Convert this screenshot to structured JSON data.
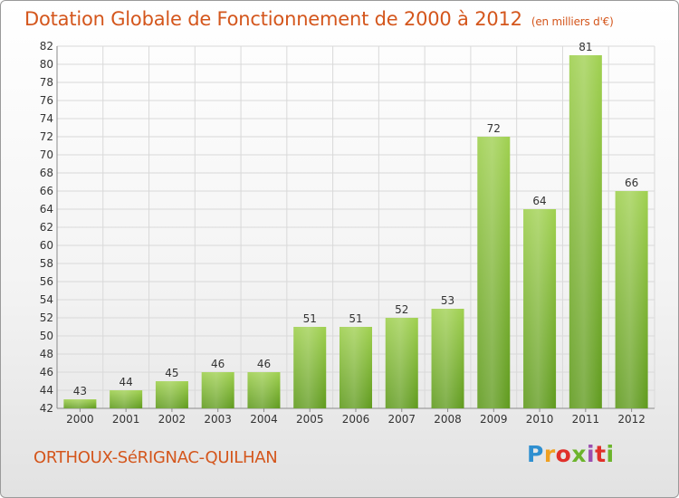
{
  "header": {
    "title": "Dotation Globale de Fonctionnement de 2000 à 2012",
    "subtitle": "(en milliers d'€)"
  },
  "footer": {
    "city": "ORTHOUX-SéRIGNAC-QUILHAN",
    "logo_text": "Proxiti"
  },
  "colors": {
    "title": "#d4561c",
    "bar_light": "#9fd04f",
    "bar_dark": "#5f9a1d",
    "grid": "#d9d9d9"
  },
  "chart_data": {
    "type": "bar",
    "title": "Dotation Globale de Fonctionnement de 2000 à 2012",
    "subtitle": "(en milliers d'€)",
    "categories": [
      "2000",
      "2001",
      "2002",
      "2003",
      "2004",
      "2005",
      "2006",
      "2007",
      "2008",
      "2009",
      "2010",
      "2011",
      "2012"
    ],
    "values": [
      43,
      44,
      45,
      46,
      46,
      51,
      51,
      52,
      53,
      72,
      64,
      81,
      66
    ],
    "ylim": [
      42,
      82
    ],
    "yticks": [
      42,
      44,
      46,
      48,
      50,
      52,
      54,
      56,
      58,
      60,
      62,
      64,
      66,
      68,
      70,
      72,
      74,
      76,
      78,
      80,
      82
    ],
    "grid": true,
    "xlabel": "",
    "ylabel": ""
  }
}
